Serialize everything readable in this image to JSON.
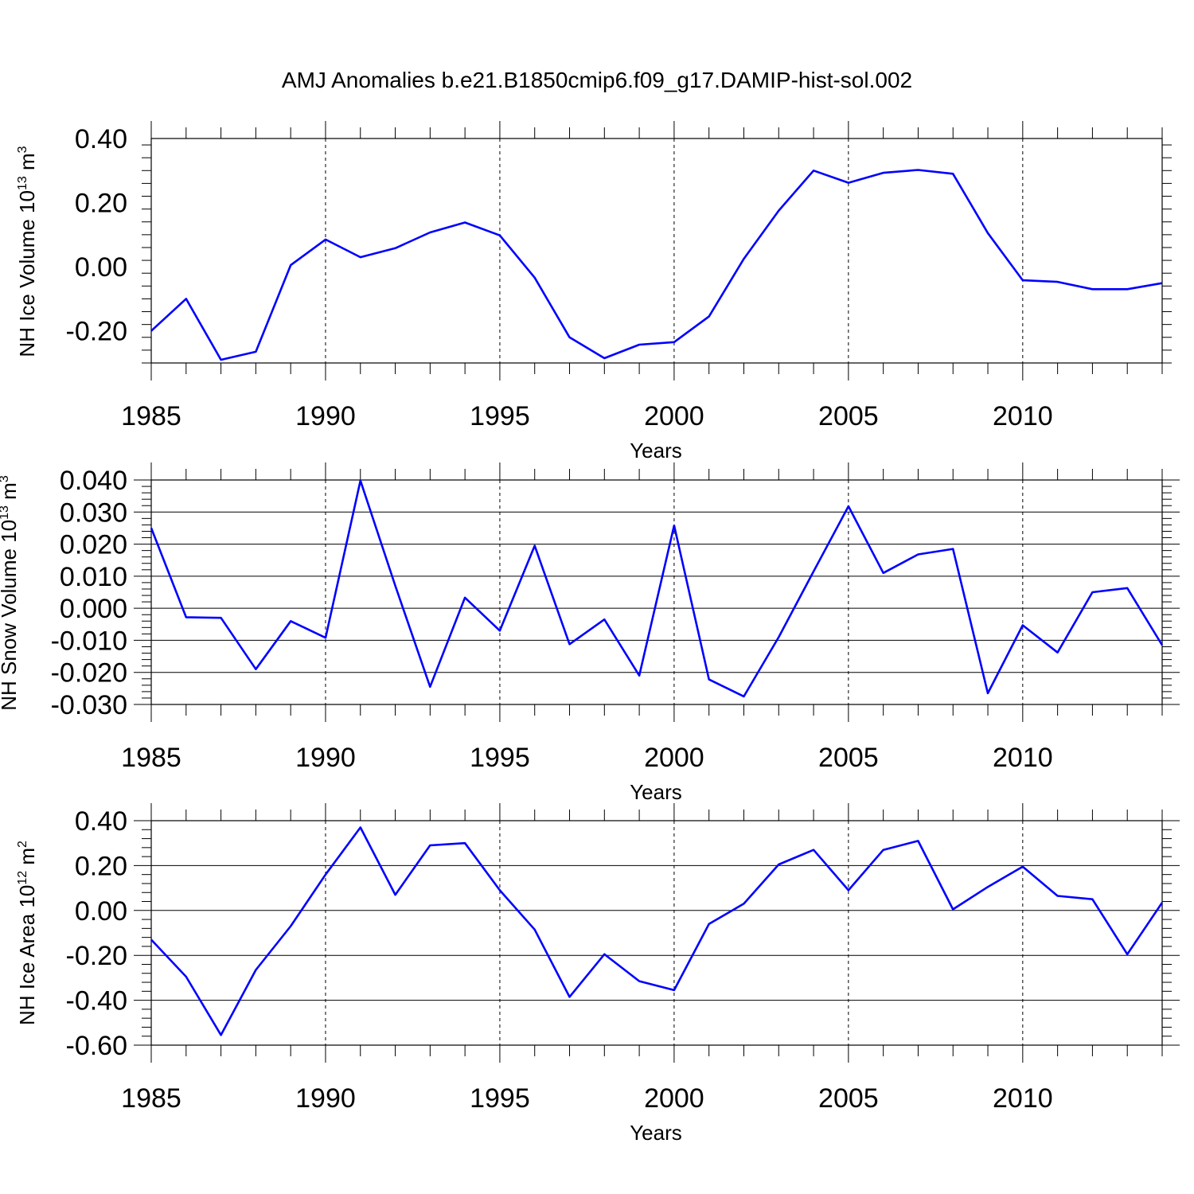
{
  "title": "AMJ Anomalies b.e21.B1850cmip6.f09_g17.DAMIP-hist-sol.002",
  "colors": {
    "line": "#0000ff",
    "axis": "#000000"
  },
  "chart_data": [
    {
      "type": "line",
      "xlabel": "Years",
      "ylabel_main": "NH Ice Volume 10",
      "ylabel_exp": "13",
      "ylabel_unit": " m",
      "ylabel_unit_exp": "3",
      "xlim": [
        1985,
        2014
      ],
      "ylim": [
        -0.3,
        0.4
      ],
      "xticks": [
        1985,
        1990,
        1995,
        2000,
        2005,
        2010
      ],
      "yticks": [
        -0.2,
        0.0,
        0.2,
        0.4
      ],
      "ytick_labels": [
        "-0.20",
        "0.00",
        "0.20",
        "0.40"
      ],
      "grid": "vertical dashed at major x ticks",
      "series": [
        {
          "x": [
            1985,
            1986,
            1987,
            1988,
            1989,
            1990,
            1991,
            1992,
            1993,
            1994,
            1995,
            1996,
            1997,
            1998,
            1999,
            2000,
            2001,
            2002,
            2003,
            2004,
            2005,
            2006,
            2007,
            2008,
            2009,
            2010,
            2011,
            2012,
            2013,
            2014
          ],
          "values": [
            -0.2,
            -0.1,
            -0.29,
            -0.265,
            0.005,
            0.085,
            0.03,
            0.058,
            0.107,
            0.138,
            0.098,
            -0.034,
            -0.22,
            -0.285,
            -0.243,
            -0.235,
            -0.155,
            0.025,
            0.175,
            0.3,
            0.262,
            0.293,
            0.302,
            0.29,
            0.105,
            -0.042,
            -0.047,
            -0.07,
            -0.07,
            -0.051
          ]
        }
      ]
    },
    {
      "type": "line",
      "xlabel": "Years",
      "ylabel_main": "NH Snow Volume 10",
      "ylabel_exp": "13",
      "ylabel_unit": " m",
      "ylabel_unit_exp": "3",
      "xlim": [
        1985,
        2014
      ],
      "ylim": [
        -0.03,
        0.04
      ],
      "xticks": [
        1985,
        1990,
        1995,
        2000,
        2005,
        2010
      ],
      "yticks": [
        -0.03,
        -0.02,
        -0.01,
        0.0,
        0.01,
        0.02,
        0.03,
        0.04
      ],
      "ytick_labels": [
        "-0.030",
        "-0.020",
        "-0.010",
        "0.000",
        "0.010",
        "0.020",
        "0.030",
        "0.040"
      ],
      "grid": "vertical dashed at major x ticks",
      "series": [
        {
          "x": [
            1985,
            1986,
            1987,
            1988,
            1989,
            1990,
            1991,
            1992,
            1993,
            1994,
            1995,
            1996,
            1997,
            1998,
            1999,
            2000,
            2001,
            2002,
            2003,
            2004,
            2005,
            2006,
            2007,
            2008,
            2009,
            2010,
            2011,
            2012,
            2013,
            2014
          ],
          "values": [
            0.025,
            -0.0028,
            -0.003,
            -0.019,
            -0.004,
            -0.0092,
            0.0398,
            0.007,
            -0.0245,
            0.0033,
            -0.007,
            0.0195,
            -0.0112,
            -0.0035,
            -0.021,
            0.0258,
            -0.0222,
            -0.0275,
            -0.009,
            0.0115,
            0.0318,
            0.011,
            0.0168,
            0.0185,
            -0.0265,
            -0.0053,
            -0.0138,
            0.005,
            0.0063,
            -0.0115
          ]
        }
      ]
    },
    {
      "type": "line",
      "xlabel": "Years",
      "ylabel_main": "NH Ice Area 10",
      "ylabel_exp": "12",
      "ylabel_unit": " m",
      "ylabel_unit_exp": "2",
      "xlim": [
        1985,
        2014
      ],
      "ylim": [
        -0.6,
        0.4
      ],
      "xticks": [
        1985,
        1990,
        1995,
        2000,
        2005,
        2010
      ],
      "yticks": [
        -0.6,
        -0.4,
        -0.2,
        0.0,
        0.2,
        0.4
      ],
      "ytick_labels": [
        "-0.60",
        "-0.40",
        "-0.20",
        "0.00",
        "0.20",
        "0.40"
      ],
      "grid": "vertical dashed at major x ticks",
      "series": [
        {
          "x": [
            1985,
            1986,
            1987,
            1988,
            1989,
            1990,
            1991,
            1992,
            1993,
            1994,
            1995,
            1996,
            1997,
            1998,
            1999,
            2000,
            2001,
            2002,
            2003,
            2004,
            2005,
            2006,
            2007,
            2008,
            2009,
            2010,
            2011,
            2012,
            2013,
            2014
          ],
          "values": [
            -0.13,
            -0.295,
            -0.555,
            -0.265,
            -0.07,
            0.16,
            0.37,
            0.07,
            0.29,
            0.3,
            0.09,
            -0.085,
            -0.385,
            -0.195,
            -0.315,
            -0.355,
            -0.06,
            0.03,
            0.205,
            0.27,
            0.09,
            0.27,
            0.31,
            0.005,
            0.105,
            0.195,
            0.065,
            0.05,
            -0.195,
            0.035
          ]
        }
      ]
    }
  ]
}
